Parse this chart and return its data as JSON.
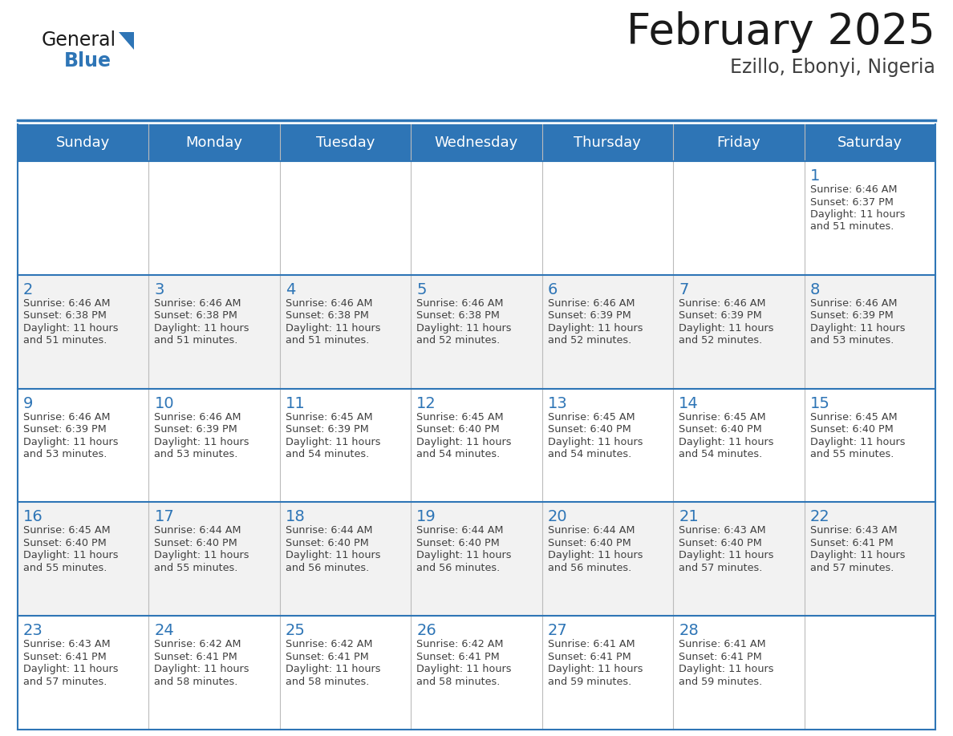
{
  "title": "February 2025",
  "subtitle": "Ezillo, Ebonyi, Nigeria",
  "days_of_week": [
    "Sunday",
    "Monday",
    "Tuesday",
    "Wednesday",
    "Thursday",
    "Friday",
    "Saturday"
  ],
  "header_bg": "#2E75B6",
  "header_text": "#FFFFFF",
  "cell_bg_odd": "#F2F2F2",
  "cell_bg_even": "#FFFFFF",
  "day_number_color": "#2E75B6",
  "info_text_color": "#404040",
  "border_color": "#2E75B6",
  "title_color": "#1a1a1a",
  "subtitle_color": "#404040",
  "logo_general_color": "#1a1a1a",
  "logo_blue_color": "#2E75B6",
  "calendar": [
    [
      null,
      null,
      null,
      null,
      null,
      null,
      {
        "day": 1,
        "sunrise": "6:46 AM",
        "sunset": "6:37 PM",
        "daylight_h": "11 hours",
        "daylight_m": "and 51 minutes."
      }
    ],
    [
      {
        "day": 2,
        "sunrise": "6:46 AM",
        "sunset": "6:38 PM",
        "daylight_h": "11 hours",
        "daylight_m": "and 51 minutes."
      },
      {
        "day": 3,
        "sunrise": "6:46 AM",
        "sunset": "6:38 PM",
        "daylight_h": "11 hours",
        "daylight_m": "and 51 minutes."
      },
      {
        "day": 4,
        "sunrise": "6:46 AM",
        "sunset": "6:38 PM",
        "daylight_h": "11 hours",
        "daylight_m": "and 51 minutes."
      },
      {
        "day": 5,
        "sunrise": "6:46 AM",
        "sunset": "6:38 PM",
        "daylight_h": "11 hours",
        "daylight_m": "and 52 minutes."
      },
      {
        "day": 6,
        "sunrise": "6:46 AM",
        "sunset": "6:39 PM",
        "daylight_h": "11 hours",
        "daylight_m": "and 52 minutes."
      },
      {
        "day": 7,
        "sunrise": "6:46 AM",
        "sunset": "6:39 PM",
        "daylight_h": "11 hours",
        "daylight_m": "and 52 minutes."
      },
      {
        "day": 8,
        "sunrise": "6:46 AM",
        "sunset": "6:39 PM",
        "daylight_h": "11 hours",
        "daylight_m": "and 53 minutes."
      }
    ],
    [
      {
        "day": 9,
        "sunrise": "6:46 AM",
        "sunset": "6:39 PM",
        "daylight_h": "11 hours",
        "daylight_m": "and 53 minutes."
      },
      {
        "day": 10,
        "sunrise": "6:46 AM",
        "sunset": "6:39 PM",
        "daylight_h": "11 hours",
        "daylight_m": "and 53 minutes."
      },
      {
        "day": 11,
        "sunrise": "6:45 AM",
        "sunset": "6:39 PM",
        "daylight_h": "11 hours",
        "daylight_m": "and 54 minutes."
      },
      {
        "day": 12,
        "sunrise": "6:45 AM",
        "sunset": "6:40 PM",
        "daylight_h": "11 hours",
        "daylight_m": "and 54 minutes."
      },
      {
        "day": 13,
        "sunrise": "6:45 AM",
        "sunset": "6:40 PM",
        "daylight_h": "11 hours",
        "daylight_m": "and 54 minutes."
      },
      {
        "day": 14,
        "sunrise": "6:45 AM",
        "sunset": "6:40 PM",
        "daylight_h": "11 hours",
        "daylight_m": "and 54 minutes."
      },
      {
        "day": 15,
        "sunrise": "6:45 AM",
        "sunset": "6:40 PM",
        "daylight_h": "11 hours",
        "daylight_m": "and 55 minutes."
      }
    ],
    [
      {
        "day": 16,
        "sunrise": "6:45 AM",
        "sunset": "6:40 PM",
        "daylight_h": "11 hours",
        "daylight_m": "and 55 minutes."
      },
      {
        "day": 17,
        "sunrise": "6:44 AM",
        "sunset": "6:40 PM",
        "daylight_h": "11 hours",
        "daylight_m": "and 55 minutes."
      },
      {
        "day": 18,
        "sunrise": "6:44 AM",
        "sunset": "6:40 PM",
        "daylight_h": "11 hours",
        "daylight_m": "and 56 minutes."
      },
      {
        "day": 19,
        "sunrise": "6:44 AM",
        "sunset": "6:40 PM",
        "daylight_h": "11 hours",
        "daylight_m": "and 56 minutes."
      },
      {
        "day": 20,
        "sunrise": "6:44 AM",
        "sunset": "6:40 PM",
        "daylight_h": "11 hours",
        "daylight_m": "and 56 minutes."
      },
      {
        "day": 21,
        "sunrise": "6:43 AM",
        "sunset": "6:40 PM",
        "daylight_h": "11 hours",
        "daylight_m": "and 57 minutes."
      },
      {
        "day": 22,
        "sunrise": "6:43 AM",
        "sunset": "6:41 PM",
        "daylight_h": "11 hours",
        "daylight_m": "and 57 minutes."
      }
    ],
    [
      {
        "day": 23,
        "sunrise": "6:43 AM",
        "sunset": "6:41 PM",
        "daylight_h": "11 hours",
        "daylight_m": "and 57 minutes."
      },
      {
        "day": 24,
        "sunrise": "6:42 AM",
        "sunset": "6:41 PM",
        "daylight_h": "11 hours",
        "daylight_m": "and 58 minutes."
      },
      {
        "day": 25,
        "sunrise": "6:42 AM",
        "sunset": "6:41 PM",
        "daylight_h": "11 hours",
        "daylight_m": "and 58 minutes."
      },
      {
        "day": 26,
        "sunrise": "6:42 AM",
        "sunset": "6:41 PM",
        "daylight_h": "11 hours",
        "daylight_m": "and 58 minutes."
      },
      {
        "day": 27,
        "sunrise": "6:41 AM",
        "sunset": "6:41 PM",
        "daylight_h": "11 hours",
        "daylight_m": "and 59 minutes."
      },
      {
        "day": 28,
        "sunrise": "6:41 AM",
        "sunset": "6:41 PM",
        "daylight_h": "11 hours",
        "daylight_m": "and 59 minutes."
      },
      null
    ]
  ]
}
